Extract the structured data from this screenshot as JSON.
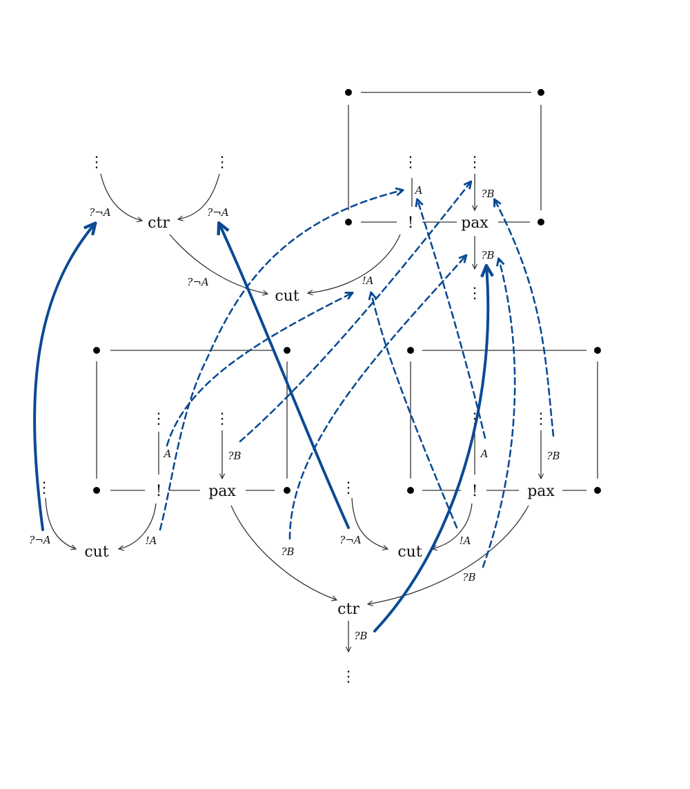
{
  "nodes": {
    "ctr": "ctr",
    "cut": "cut",
    "pax": "pax",
    "bang": "!",
    "vdots": "⋮"
  },
  "labels": {
    "q_not_a": "?¬A",
    "a": "A",
    "q_b": "?B",
    "bang_a": "!A"
  },
  "colors": {
    "wire": "#333333",
    "highlight_path": "#0b4a94"
  },
  "edge_styles": [
    "solid",
    "dashed"
  ]
}
